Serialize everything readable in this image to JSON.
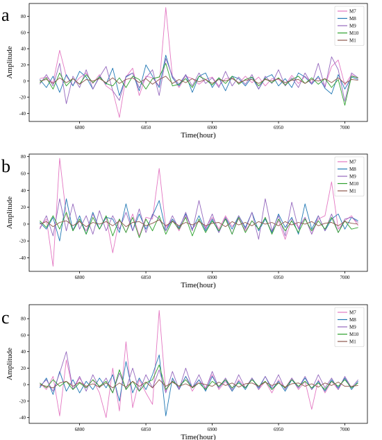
{
  "figure": {
    "panel_count": 3
  },
  "series_colors": {
    "M7": "#e377c2",
    "M8": "#1f77b4",
    "M9": "#9467bd",
    "M10": "#2ca02c",
    "M1": "#8c564b"
  },
  "chart_data": [
    {
      "panel_label": "a",
      "type": "line",
      "xlabel": "Time(hour)",
      "ylabel": "Amplitude",
      "xlim": [
        6762,
        7017
      ],
      "ylim": [
        -50,
        96
      ],
      "xticks": [
        6800,
        6850,
        6900,
        6950,
        7000
      ],
      "yticks": [
        -40,
        -20,
        0,
        20,
        40,
        60,
        80
      ],
      "legend": [
        "M7",
        "M8",
        "M9",
        "M10",
        "M1"
      ],
      "legend_position": "top-right",
      "x": [
        6770,
        6775,
        6780,
        6785,
        6790,
        6795,
        6800,
        6805,
        6810,
        6815,
        6820,
        6825,
        6830,
        6835,
        6840,
        6845,
        6850,
        6855,
        6860,
        6865,
        6870,
        6875,
        6880,
        6885,
        6890,
        6895,
        6900,
        6905,
        6910,
        6915,
        6920,
        6925,
        6930,
        6935,
        6940,
        6945,
        6950,
        6955,
        6960,
        6965,
        6970,
        6975,
        6980,
        6985,
        6990,
        6995,
        7000,
        7005,
        7010
      ],
      "series": [
        {
          "name": "M7",
          "values": [
            3,
            5,
            -2,
            38,
            6,
            -5,
            4,
            10,
            -3,
            8,
            -6,
            -12,
            -45,
            5,
            16,
            -18,
            6,
            4,
            -6,
            91,
            5,
            -8,
            6,
            3,
            -4,
            2,
            5,
            -6,
            3,
            4,
            -3,
            6,
            -2,
            5,
            -6,
            3,
            2,
            -5,
            7,
            -3,
            6,
            -2,
            4,
            -6,
            18,
            26,
            -5,
            8,
            3
          ]
        },
        {
          "name": "M8",
          "values": [
            2,
            -8,
            6,
            -14,
            8,
            -6,
            12,
            5,
            -10,
            6,
            -4,
            16,
            -18,
            5,
            10,
            -12,
            20,
            6,
            -8,
            32,
            4,
            -6,
            8,
            -14,
            6,
            10,
            -8,
            4,
            -12,
            6,
            3,
            -6,
            5,
            -10,
            4,
            8,
            -6,
            3,
            -8,
            10,
            5,
            -4,
            6,
            -9,
            -16,
            8,
            -10,
            5,
            2
          ]
        },
        {
          "name": "M9",
          "values": [
            -4,
            8,
            -6,
            22,
            -28,
            6,
            -8,
            14,
            -10,
            5,
            18,
            -12,
            -24,
            6,
            10,
            -8,
            4,
            14,
            -18,
            28,
            6,
            -4,
            8,
            -6,
            10,
            -3,
            4,
            -8,
            12,
            -6,
            5,
            -4,
            8,
            -10,
            6,
            -3,
            14,
            -6,
            4,
            -8,
            10,
            -4,
            22,
            -8,
            30,
            14,
            -25,
            10,
            4
          ]
        },
        {
          "name": "M10",
          "values": [
            -2,
            4,
            -10,
            10,
            -6,
            3,
            -4,
            8,
            -2,
            5,
            -3,
            -6,
            4,
            -8,
            6,
            2,
            -10,
            3,
            5,
            22,
            -6,
            -4,
            3,
            -8,
            6,
            2,
            -5,
            4,
            -3,
            6,
            -4,
            2,
            5,
            -6,
            3,
            -2,
            4,
            -5,
            2,
            6,
            -3,
            4,
            -4,
            3,
            -8,
            2,
            -30,
            6,
            4
          ]
        },
        {
          "name": "M1",
          "values": [
            0,
            2,
            -3,
            4,
            -2,
            3,
            -4,
            2,
            0,
            3,
            -2,
            4,
            -3,
            2,
            4,
            -2,
            3,
            -4,
            2,
            6,
            -3,
            2,
            -2,
            3,
            -1,
            2,
            -3,
            2,
            0,
            3,
            -2,
            1,
            2,
            -3,
            2,
            0,
            3,
            -2,
            1,
            2,
            -3,
            2,
            0,
            3,
            -2,
            4,
            -3,
            2,
            1
          ]
        }
      ]
    },
    {
      "panel_label": "b",
      "type": "line",
      "xlabel": "Time(hour)",
      "ylabel": "Amplitude",
      "xlim": [
        6762,
        7017
      ],
      "ylim": [
        -56,
        83
      ],
      "xticks": [
        6800,
        6850,
        6900,
        6950,
        7000
      ],
      "yticks": [
        -40,
        -20,
        0,
        20,
        40,
        60,
        80
      ],
      "legend": [
        "M7",
        "M8",
        "M9",
        "M10",
        "M1"
      ],
      "legend_position": "top-right",
      "x": [
        6770,
        6775,
        6780,
        6785,
        6790,
        6795,
        6800,
        6805,
        6810,
        6815,
        6820,
        6825,
        6830,
        6835,
        6840,
        6845,
        6850,
        6855,
        6860,
        6865,
        6870,
        6875,
        6880,
        6885,
        6890,
        6895,
        6900,
        6905,
        6910,
        6915,
        6920,
        6925,
        6930,
        6935,
        6940,
        6945,
        6950,
        6955,
        6960,
        6965,
        6970,
        6975,
        6980,
        6985,
        6990,
        6995,
        7000,
        7005,
        7010
      ],
      "series": [
        {
          "name": "M7",
          "values": [
            -4,
            6,
            -50,
            78,
            10,
            -6,
            4,
            -8,
            12,
            -6,
            8,
            -34,
            6,
            -10,
            12,
            -14,
            8,
            6,
            66,
            -4,
            6,
            -8,
            10,
            -6,
            4,
            -4,
            8,
            -6,
            10,
            -3,
            6,
            -8,
            4,
            -6,
            8,
            -10,
            4,
            -18,
            6,
            -4,
            8,
            -12,
            6,
            10,
            50,
            -6,
            4,
            10,
            -2
          ]
        },
        {
          "name": "M8",
          "values": [
            2,
            -6,
            8,
            -20,
            30,
            -8,
            10,
            -12,
            14,
            -6,
            8,
            6,
            -10,
            24,
            -8,
            12,
            -6,
            10,
            28,
            -8,
            6,
            -4,
            12,
            -6,
            10,
            -8,
            6,
            -10,
            8,
            -6,
            10,
            -4,
            14,
            -8,
            6,
            -10,
            12,
            -4,
            8,
            -12,
            24,
            -6,
            10,
            -8,
            6,
            12,
            -6,
            8,
            4
          ]
        },
        {
          "name": "M9",
          "values": [
            -6,
            10,
            -14,
            30,
            -8,
            24,
            -6,
            10,
            -12,
            16,
            -8,
            10,
            -6,
            14,
            -8,
            18,
            -10,
            12,
            6,
            -8,
            10,
            -6,
            14,
            -8,
            28,
            -6,
            12,
            -10,
            8,
            -12,
            10,
            -6,
            14,
            -18,
            30,
            -8,
            10,
            -14,
            26,
            -6,
            8,
            -12,
            10,
            -8,
            12,
            -10,
            6,
            8,
            2
          ]
        },
        {
          "name": "M10",
          "values": [
            4,
            -4,
            10,
            -6,
            14,
            -8,
            6,
            -12,
            8,
            -6,
            10,
            -14,
            6,
            -10,
            8,
            -16,
            6,
            -8,
            10,
            -12,
            4,
            -6,
            8,
            -14,
            6,
            -10,
            4,
            -8,
            6,
            -12,
            8,
            -10,
            4,
            -6,
            8,
            -12,
            6,
            -8,
            4,
            -10,
            6,
            -8,
            4,
            -6,
            8,
            -10,
            4,
            -6,
            -4
          ]
        },
        {
          "name": "M1",
          "values": [
            0,
            3,
            -3,
            2,
            4,
            -2,
            3,
            -3,
            2,
            0,
            3,
            -2,
            4,
            -3,
            2,
            3,
            -2,
            1,
            5,
            -2,
            3,
            -2,
            2,
            -1,
            3,
            -2,
            1,
            2,
            -3,
            3,
            -1,
            2,
            -2,
            3,
            0,
            2,
            -2,
            3,
            -1,
            2,
            0,
            3,
            -2,
            1,
            2,
            -2,
            3,
            1,
            0
          ]
        }
      ]
    },
    {
      "panel_label": "c",
      "type": "line",
      "xlabel": "Time(hour)",
      "ylabel": "Amplitude",
      "xlim": [
        6762,
        7017
      ],
      "ylim": [
        -47,
        97
      ],
      "xticks": [
        6800,
        6850,
        6900,
        6950,
        7000
      ],
      "yticks": [
        -40,
        -20,
        0,
        20,
        40,
        60,
        80
      ],
      "legend": [
        "M7",
        "M8",
        "M9",
        "M10",
        "M1"
      ],
      "legend_position": "top-right",
      "x": [
        6770,
        6775,
        6780,
        6785,
        6790,
        6795,
        6800,
        6805,
        6810,
        6815,
        6820,
        6825,
        6830,
        6835,
        6840,
        6845,
        6850,
        6855,
        6860,
        6865,
        6870,
        6875,
        6880,
        6885,
        6890,
        6895,
        6900,
        6905,
        6910,
        6915,
        6920,
        6925,
        6930,
        6935,
        6940,
        6945,
        6950,
        6955,
        6960,
        6965,
        6970,
        6975,
        6980,
        6985,
        6990,
        6995,
        7000,
        7005,
        7010
      ],
      "series": [
        {
          "name": "M7",
          "values": [
            2,
            -6,
            10,
            -38,
            30,
            -6,
            8,
            -4,
            6,
            -10,
            -40,
            20,
            -32,
            52,
            -28,
            6,
            -10,
            -24,
            90,
            -8,
            6,
            -4,
            10,
            -8,
            6,
            -4,
            12,
            -6,
            4,
            -8,
            6,
            -4,
            8,
            -6,
            4,
            -10,
            6,
            -4,
            8,
            -6,
            4,
            -30,
            6,
            -10,
            4,
            -6,
            8,
            -4,
            2
          ]
        },
        {
          "name": "M8",
          "values": [
            -4,
            8,
            -12,
            16,
            -8,
            6,
            -10,
            4,
            -6,
            8,
            -4,
            12,
            -20,
            28,
            -10,
            8,
            -6,
            12,
            36,
            -38,
            8,
            -6,
            10,
            -4,
            6,
            -8,
            10,
            -4,
            6,
            -8,
            4,
            -6,
            8,
            -4,
            10,
            -6,
            4,
            -8,
            6,
            -4,
            8,
            -6,
            4,
            -8,
            6,
            -4,
            8,
            -6,
            4
          ]
        },
        {
          "name": "M9",
          "values": [
            -2,
            6,
            -8,
            14,
            40,
            -6,
            10,
            -8,
            12,
            -4,
            8,
            -10,
            14,
            -6,
            20,
            -8,
            12,
            -4,
            18,
            -10,
            16,
            -6,
            20,
            -4,
            12,
            -6,
            16,
            -4,
            8,
            -6,
            12,
            -4,
            8,
            -6,
            10,
            -4,
            12,
            -6,
            8,
            -4,
            10,
            -6,
            12,
            -4,
            8,
            -6,
            10,
            -4,
            6
          ]
        },
        {
          "name": "M10",
          "values": [
            2,
            -4,
            6,
            -2,
            4,
            -6,
            2,
            -4,
            6,
            -2,
            4,
            -10,
            18,
            -6,
            4,
            -8,
            2,
            6,
            24,
            -6,
            4,
            -2,
            6,
            -4,
            2,
            -6,
            4,
            -2,
            6,
            -4,
            2,
            -4,
            6,
            -2,
            4,
            -6,
            2,
            -4,
            6,
            -2,
            4,
            -4,
            2,
            -6,
            4,
            -2,
            6,
            -4,
            2
          ]
        },
        {
          "name": "M1",
          "values": [
            0,
            -2,
            -4,
            2,
            4,
            -2,
            3,
            -2,
            1,
            -3,
            2,
            -4,
            2,
            -3,
            4,
            -2,
            3,
            -4,
            6,
            -2,
            3,
            -2,
            1,
            -3,
            2,
            0,
            -2,
            3,
            -1,
            2,
            -3,
            1,
            2,
            -2,
            3,
            -1,
            2,
            -3,
            1,
            2,
            -2,
            1,
            -3,
            2,
            -1,
            3,
            -2,
            -2,
            -1
          ]
        }
      ]
    }
  ]
}
